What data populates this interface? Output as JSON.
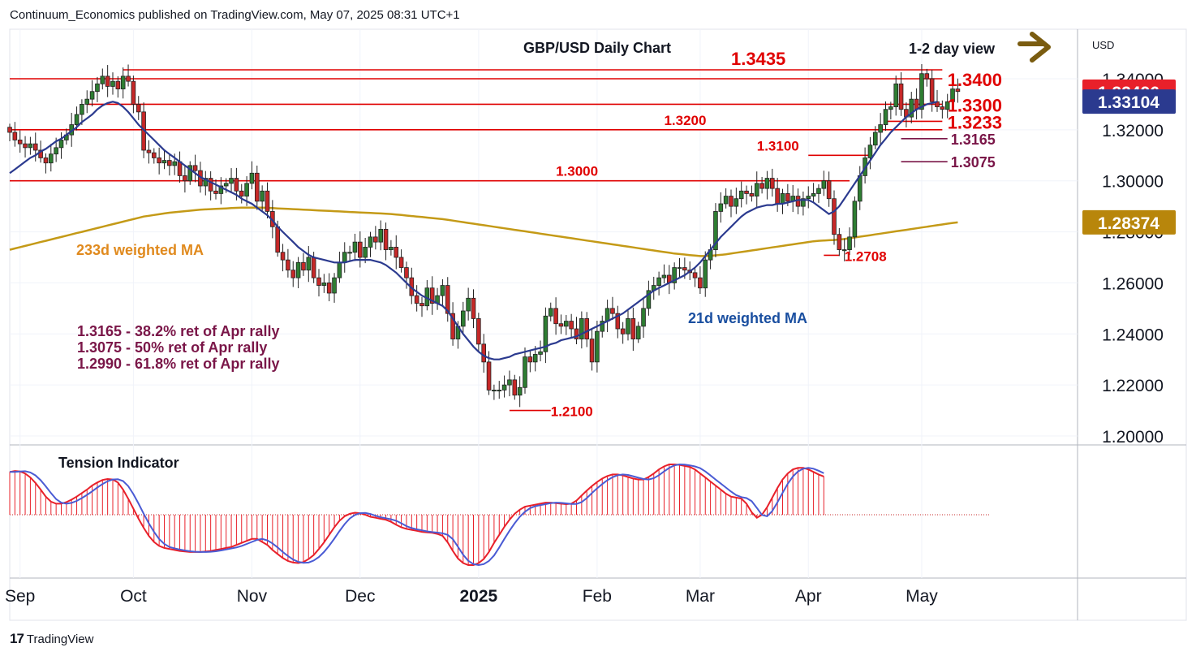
{
  "header": {
    "publisher_line": "Continuum_Economics published on TradingView.com, May 07, 2025 08:31 UTC+1"
  },
  "footer": {
    "brand": "TradingView",
    "logo": "17"
  },
  "chart_data": {
    "type": "candlestick",
    "title": "GBP/USD Daily Chart",
    "view_label": "1-2 day view",
    "view_arrow": "right-arrow",
    "currency_label": "USD",
    "y_ticks": [
      "1.34000",
      "1.32000",
      "1.30000",
      "1.28000",
      "1.26000",
      "1.24000",
      "1.22000",
      "1.20000"
    ],
    "y_tick_values": [
      1.34,
      1.32,
      1.3,
      1.28,
      1.26,
      1.24,
      1.22,
      1.2
    ],
    "ylim": [
      1.195,
      1.3465
    ],
    "x_labels": [
      {
        "text": "Sep",
        "index": 2
      },
      {
        "text": "Oct",
        "index": 24
      },
      {
        "text": "Nov",
        "index": 47
      },
      {
        "text": "Dec",
        "index": 68
      },
      {
        "text": "2025",
        "index": 91
      },
      {
        "text": "Feb",
        "index": 114
      },
      {
        "text": "Mar",
        "index": 134
      },
      {
        "text": "Apr",
        "index": 155
      },
      {
        "text": "May",
        "index": 177
      }
    ],
    "price_badges": [
      {
        "text": "1.33496",
        "value": 1.33496,
        "color": "#e8202a"
      },
      {
        "text": "1.33104",
        "value": 1.33104,
        "color": "#2b3a8f"
      },
      {
        "text": "1.28374",
        "value": 1.28374,
        "color": "#b8860b"
      }
    ],
    "levels": [
      {
        "value": 1.3435,
        "label": "1.3435",
        "from": 22,
        "to": 181,
        "label_index": 140,
        "label_size": 22,
        "above": true
      },
      {
        "value": 1.34,
        "label": "1.3400",
        "from": 0,
        "to": 181,
        "label_index": 182,
        "label_size": 22
      },
      {
        "value": 1.33,
        "label": "1.3300",
        "from": 15,
        "to": 181,
        "label_index": 182,
        "label_size": 22
      },
      {
        "value": 1.3233,
        "label": "1.3233",
        "from": 170,
        "to": 181,
        "label_index": 182,
        "label_size": 22
      },
      {
        "value": 1.32,
        "label": "1.3200",
        "from": 0,
        "to": 181,
        "label_index": 127,
        "label_size": 17,
        "above": true
      },
      {
        "value": 1.31,
        "label": "1.3100",
        "from": 155,
        "to": 167,
        "label_index": 145,
        "label_size": 17,
        "above": true
      },
      {
        "value": 1.3,
        "label": "1.3000",
        "from": 0,
        "to": 163,
        "label_index": 106,
        "label_size": 17,
        "above": true
      },
      {
        "value": 1.2708,
        "label": "1.2708",
        "from": 158,
        "to": 161,
        "label_index": 162,
        "label_size": 17
      },
      {
        "value": 1.21,
        "label": "1.2100",
        "from": 97,
        "to": 105,
        "label_index": 105,
        "label_size": 17
      }
    ],
    "retracement_marks": [
      {
        "value": 1.3165,
        "label": "1.3165",
        "from": 173,
        "to": 182
      },
      {
        "value": 1.3075,
        "label": "1.3075",
        "from": 173,
        "to": 182
      }
    ],
    "annotations": {
      "ma233_label": "233d weighted MA",
      "ma21_label": "21d weighted MA",
      "retracements": [
        "1.3165 - 38.2% ret of Apr rally",
        "1.3075 - 50% ret of Apr rally",
        "1.2990 - 61.8% ret of Apr rally"
      ]
    },
    "colors": {
      "up": "#2e7d32",
      "down": "#c62828",
      "ma21": "#2b3a8f",
      "ma233": "#c49a17",
      "level": "#e00000",
      "retrace": "#7a1648",
      "text_red": "#e00000",
      "text_blue": "#1a4fa0",
      "text_orange": "#e08a1e",
      "arrow": "#7a5c10"
    },
    "closes": [
      1.319,
      1.316,
      1.3145,
      1.313,
      1.3145,
      1.312,
      1.309,
      1.307,
      1.3105,
      1.313,
      1.316,
      1.318,
      1.322,
      1.326,
      1.33,
      1.332,
      1.335,
      1.338,
      1.341,
      1.337,
      1.339,
      1.336,
      1.341,
      1.339,
      1.33,
      1.327,
      1.312,
      1.311,
      1.309,
      1.307,
      1.308,
      1.306,
      1.3075,
      1.302,
      1.3,
      1.306,
      1.304,
      1.298,
      1.301,
      1.296,
      1.295,
      1.298,
      1.299,
      1.301,
      1.296,
      1.294,
      1.299,
      1.303,
      1.292,
      1.296,
      1.288,
      1.282,
      1.272,
      1.269,
      1.265,
      1.262,
      1.268,
      1.265,
      1.27,
      1.262,
      1.259,
      1.26,
      1.256,
      1.262,
      1.268,
      1.272,
      1.272,
      1.276,
      1.27,
      1.274,
      1.278,
      1.276,
      1.281,
      1.273,
      1.274,
      1.27,
      1.266,
      1.262,
      1.255,
      1.252,
      1.251,
      1.258,
      1.252,
      1.255,
      1.259,
      1.248,
      1.238,
      1.243,
      1.249,
      1.254,
      1.246,
      1.236,
      1.229,
      1.218,
      1.218,
      1.218,
      1.22,
      1.222,
      1.216,
      1.219,
      1.231,
      1.229,
      1.232,
      1.233,
      1.247,
      1.25,
      1.244,
      1.243,
      1.245,
      1.242,
      1.238,
      1.246,
      1.238,
      1.229,
      1.241,
      1.245,
      1.25,
      1.248,
      1.242,
      1.24,
      1.246,
      1.238,
      1.243,
      1.25,
      1.257,
      1.259,
      1.262,
      1.263,
      1.26,
      1.266,
      1.266,
      1.265,
      1.264,
      1.262,
      1.258,
      1.269,
      1.273,
      1.288,
      1.291,
      1.294,
      1.29,
      1.293,
      1.296,
      1.295,
      1.294,
      1.299,
      1.297,
      1.301,
      1.297,
      1.291,
      1.295,
      1.292,
      1.294,
      1.29,
      1.293,
      1.294,
      1.295,
      1.297,
      1.3,
      1.293,
      1.279,
      1.273,
      1.273,
      1.278,
      1.292,
      1.302,
      1.309,
      1.314,
      1.319,
      1.322,
      1.328,
      1.329,
      1.338,
      1.328,
      1.325,
      1.332,
      1.328,
      1.342,
      1.34,
      1.331,
      1.329,
      1.328,
      1.331,
      1.336,
      1.335
    ],
    "ma21": [
      1.303,
      1.3045,
      1.306,
      1.3075,
      1.309,
      1.31,
      1.3115,
      1.3125,
      1.314,
      1.3155,
      1.3165,
      1.318,
      1.3195,
      1.321,
      1.323,
      1.3245,
      1.326,
      1.328,
      1.3295,
      1.3305,
      1.331,
      1.3305,
      1.329,
      1.327,
      1.3245,
      1.322,
      1.32,
      1.318,
      1.316,
      1.314,
      1.312,
      1.3105,
      1.309,
      1.3075,
      1.306,
      1.3045,
      1.303,
      1.3015,
      1.3005,
      1.2995,
      1.2985,
      1.2975,
      1.2965,
      1.2955,
      1.2945,
      1.293,
      1.292,
      1.291,
      1.2895,
      1.288,
      1.2865,
      1.2845,
      1.282,
      1.28,
      1.278,
      1.276,
      1.274,
      1.2725,
      1.271,
      1.27,
      1.2695,
      1.269,
      1.2685,
      1.268,
      1.268,
      1.268,
      1.2685,
      1.269,
      1.269,
      1.269,
      1.269,
      1.2685,
      1.268,
      1.267,
      1.2655,
      1.264,
      1.262,
      1.26,
      1.258,
      1.2565,
      1.255,
      1.254,
      1.253,
      1.252,
      1.251,
      1.249,
      1.246,
      1.243,
      1.24,
      1.2375,
      1.235,
      1.233,
      1.2315,
      1.2305,
      1.23,
      1.23,
      1.2305,
      1.231,
      1.232,
      1.2325,
      1.233,
      1.2335,
      1.234,
      1.2345,
      1.235,
      1.236,
      1.2365,
      1.2375,
      1.238,
      1.2385,
      1.239,
      1.24,
      1.241,
      1.242,
      1.243,
      1.244,
      1.245,
      1.246,
      1.247,
      1.248,
      1.2495,
      1.251,
      1.2525,
      1.254,
      1.2555,
      1.257,
      1.258,
      1.259,
      1.26,
      1.261,
      1.262,
      1.263,
      1.2645,
      1.266,
      1.268,
      1.2705,
      1.273,
      1.2755,
      1.278,
      1.28,
      1.282,
      1.284,
      1.286,
      1.2875,
      1.2885,
      1.2895,
      1.29,
      1.2905,
      1.2905,
      1.291,
      1.291,
      1.2915,
      1.292,
      1.2925,
      1.2925,
      1.2925,
      1.2915,
      1.29,
      1.2885,
      1.287,
      1.288,
      1.29,
      1.293,
      1.296,
      1.299,
      1.302,
      1.305,
      1.308,
      1.311,
      1.314,
      1.3165,
      1.319,
      1.321,
      1.323,
      1.325,
      1.3265,
      1.328,
      1.329,
      1.33,
      1.3305,
      1.331
    ],
    "ma233": [
      1.273,
      1.2735,
      1.274,
      1.2745,
      1.275,
      1.2755,
      1.276,
      1.2765,
      1.277,
      1.2775,
      1.278,
      1.2785,
      1.279,
      1.2795,
      1.28,
      1.2805,
      1.281,
      1.2815,
      1.282,
      1.2825,
      1.283,
      1.2835,
      1.284,
      1.2845,
      1.285,
      1.2855,
      1.286,
      1.2863,
      1.2866,
      1.2869,
      1.2872,
      1.2875,
      1.2877,
      1.2879,
      1.2881,
      1.2883,
      1.2885,
      1.2887,
      1.2888,
      1.2889,
      1.289,
      1.2891,
      1.2892,
      1.2893,
      1.2894,
      1.2895,
      1.2895,
      1.2895,
      1.2895,
      1.2895,
      1.2894,
      1.2893,
      1.2892,
      1.2891,
      1.289,
      1.2889,
      1.2888,
      1.2887,
      1.2886,
      1.2885,
      1.2884,
      1.2883,
      1.2882,
      1.2881,
      1.288,
      1.2879,
      1.2878,
      1.2877,
      1.2876,
      1.2875,
      1.2874,
      1.2873,
      1.2872,
      1.2871,
      1.287,
      1.2868,
      1.2866,
      1.2864,
      1.2862,
      1.286,
      1.2858,
      1.2856,
      1.2854,
      1.2852,
      1.285,
      1.2847,
      1.2844,
      1.2841,
      1.2838,
      1.2835,
      1.2832,
      1.2829,
      1.2826,
      1.2823,
      1.282,
      1.2817,
      1.2814,
      1.2811,
      1.2808,
      1.2805,
      1.2802,
      1.2799,
      1.2796,
      1.2793,
      1.279,
      1.2787,
      1.2784,
      1.2781,
      1.2778,
      1.2775,
      1.2772,
      1.2769,
      1.2766,
      1.2763,
      1.276,
      1.2757,
      1.2754,
      1.2751,
      1.2748,
      1.2745,
      1.2742,
      1.2739,
      1.2736,
      1.2733,
      1.273,
      1.2727,
      1.2724,
      1.2721,
      1.2718,
      1.2715,
      1.2713,
      1.2711,
      1.2709,
      1.2707,
      1.2705,
      1.2705,
      1.2706,
      1.2708,
      1.271,
      1.2712,
      1.2715,
      1.2718,
      1.2721,
      1.2724,
      1.2727,
      1.273,
      1.2733,
      1.2736,
      1.2739,
      1.2742,
      1.2745,
      1.2748,
      1.2751,
      1.2754,
      1.2757,
      1.276,
      1.2763,
      1.2765,
      1.2766,
      1.2767,
      1.2768,
      1.277,
      1.2772,
      1.2775,
      1.2778,
      1.2781,
      1.2784,
      1.2787,
      1.279,
      1.2793,
      1.2796,
      1.2799,
      1.2802,
      1.2805,
      1.2808,
      1.2811,
      1.2814,
      1.2817,
      1.282,
      1.2823,
      1.2826,
      1.2829,
      1.2832,
      1.2835,
      1.2837
    ],
    "tension": {
      "title": "Tension Indicator",
      "ylim": [
        -1.0,
        1.0
      ],
      "hist": [
        0.85,
        0.87,
        0.86,
        0.82,
        0.74,
        0.63,
        0.5,
        0.36,
        0.26,
        0.22,
        0.22,
        0.25,
        0.3,
        0.36,
        0.43,
        0.5,
        0.58,
        0.64,
        0.69,
        0.71,
        0.7,
        0.64,
        0.5,
        0.32,
        0.12,
        -0.08,
        -0.26,
        -0.42,
        -0.54,
        -0.62,
        -0.66,
        -0.68,
        -0.7,
        -0.72,
        -0.73,
        -0.74,
        -0.74,
        -0.74,
        -0.73,
        -0.72,
        -0.7,
        -0.68,
        -0.66,
        -0.64,
        -0.6,
        -0.56,
        -0.52,
        -0.48,
        -0.48,
        -0.54,
        -0.6,
        -0.7,
        -0.78,
        -0.86,
        -0.92,
        -0.95,
        -0.96,
        -0.94,
        -0.88,
        -0.8,
        -0.68,
        -0.55,
        -0.4,
        -0.25,
        -0.12,
        -0.03,
        0.02,
        0.04,
        0.03,
        0.0,
        -0.04,
        -0.06,
        -0.08,
        -0.1,
        -0.14,
        -0.2,
        -0.25,
        -0.28,
        -0.3,
        -0.32,
        -0.34,
        -0.35,
        -0.36,
        -0.38,
        -0.42,
        -0.55,
        -0.72,
        -0.87,
        -0.96,
        -1.0,
        -1.0,
        -0.96,
        -0.88,
        -0.74,
        -0.56,
        -0.4,
        -0.24,
        -0.1,
        0.02,
        0.1,
        0.16,
        0.18,
        0.2,
        0.22,
        0.24,
        0.24,
        0.23,
        0.22,
        0.21,
        0.22,
        0.28,
        0.38,
        0.48,
        0.57,
        0.65,
        0.72,
        0.77,
        0.8,
        0.8,
        0.78,
        0.75,
        0.72,
        0.7,
        0.7,
        0.75,
        0.82,
        0.9,
        0.96,
        1.0,
        1.0,
        0.99,
        0.97,
        0.95,
        0.9,
        0.82,
        0.74,
        0.66,
        0.58,
        0.5,
        0.42,
        0.36,
        0.34,
        0.32,
        0.22,
        0.05,
        -0.06,
        0.0,
        0.15,
        0.34,
        0.53,
        0.7,
        0.82,
        0.9,
        0.93,
        0.93,
        0.9,
        0.85,
        0.8,
        0.76
      ],
      "hist_from": 32,
      "signal_offset": 1
    }
  }
}
